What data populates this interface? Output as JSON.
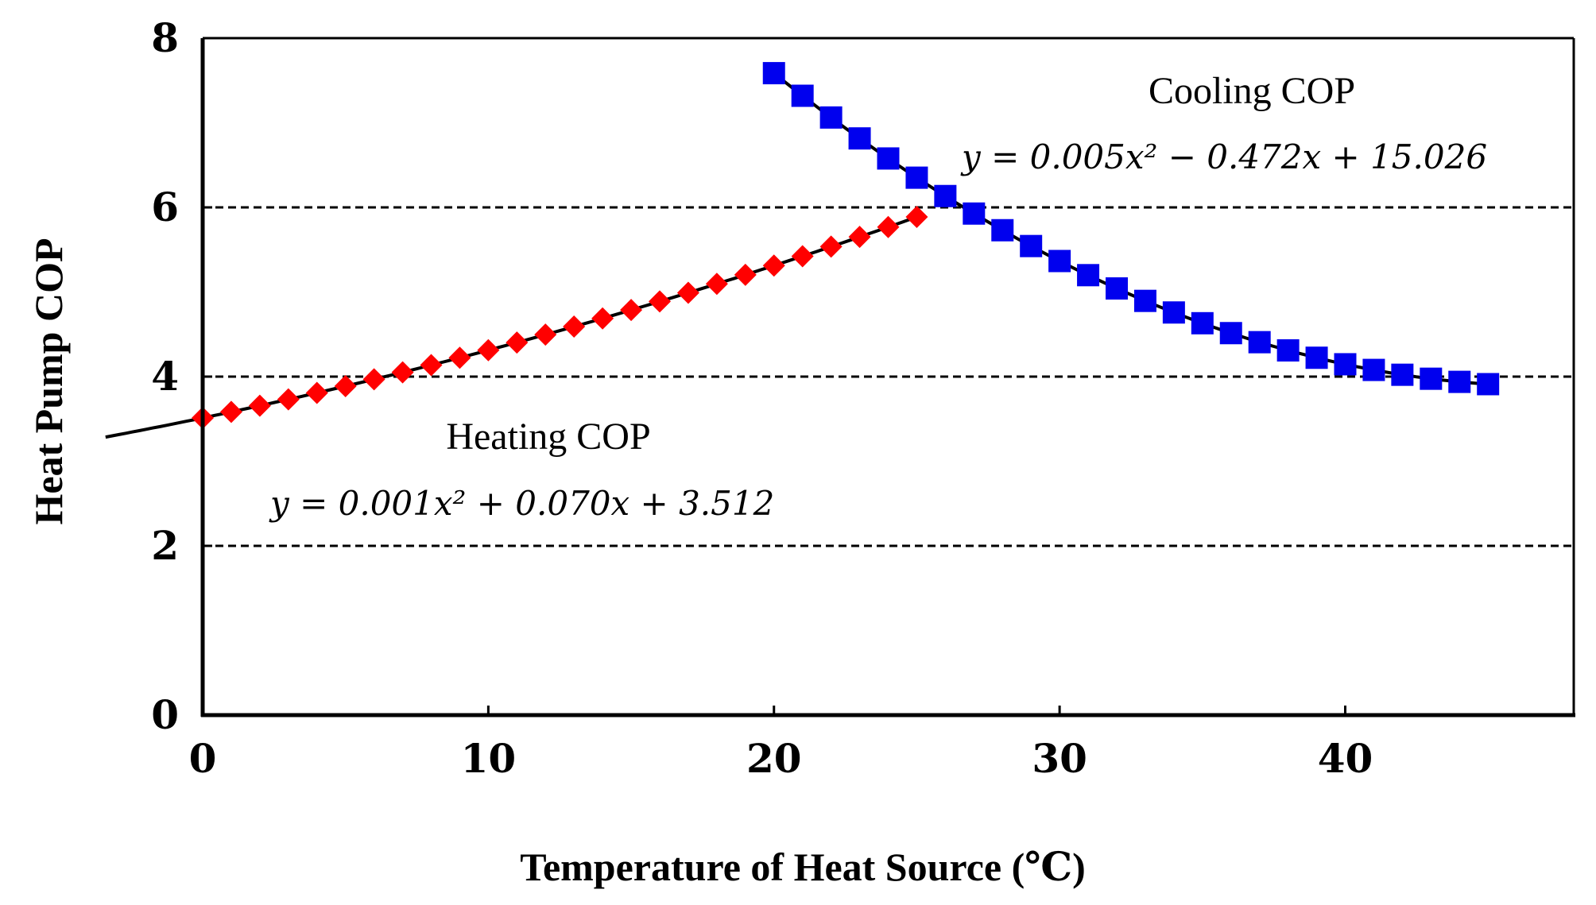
{
  "chart_data": {
    "type": "scatter",
    "title": "",
    "xlabel": "Temperature of Heat Source (℃)",
    "ylabel": "Heat Pump COP",
    "xlim": [
      0,
      48
    ],
    "ylim": [
      0,
      8
    ],
    "xticks": [
      0,
      10,
      20,
      30,
      40
    ],
    "yticks": [
      0,
      2,
      4,
      6,
      8
    ],
    "grid": "horizontal dashed",
    "series": [
      {
        "name": "Heating COP",
        "marker": "diamond",
        "color": "#ff0000",
        "x": [
          0,
          1,
          2,
          3,
          4,
          5,
          6,
          7,
          8,
          9,
          10,
          11,
          12,
          13,
          14,
          15,
          16,
          17,
          18,
          19,
          20,
          21,
          22,
          23,
          24,
          25
        ],
        "fit": {
          "a": 0.001,
          "b": 0.07,
          "c": 3.512,
          "x_range": [
            -3.4,
            25
          ]
        },
        "equation": "y = 0.001x² + 0.070x + 3.512"
      },
      {
        "name": "Cooling COP",
        "marker": "square",
        "color": "#0000ee",
        "x": [
          20,
          21,
          22,
          23,
          24,
          25,
          26,
          27,
          28,
          29,
          30,
          31,
          32,
          33,
          34,
          35,
          36,
          37,
          38,
          39,
          40,
          41,
          42,
          43,
          44,
          45
        ],
        "fit": {
          "a": 0.005,
          "b": -0.472,
          "c": 15.026,
          "x_range": [
            20,
            45
          ]
        },
        "equation": "y = 0.005x² − 0.472x + 15.026"
      }
    ]
  }
}
